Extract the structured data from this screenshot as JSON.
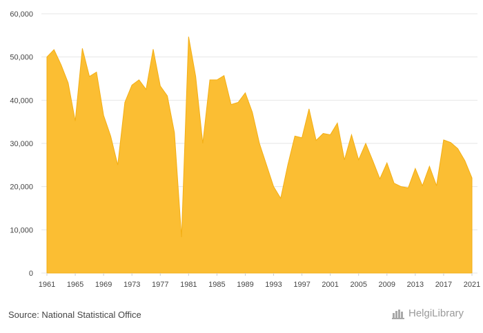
{
  "chart_data": {
    "type": "area",
    "x": [
      1961,
      1962,
      1963,
      1964,
      1965,
      1966,
      1967,
      1968,
      1969,
      1970,
      1971,
      1972,
      1973,
      1974,
      1975,
      1976,
      1977,
      1978,
      1979,
      1980,
      1981,
      1982,
      1983,
      1984,
      1985,
      1986,
      1987,
      1988,
      1989,
      1990,
      1991,
      1992,
      1993,
      1994,
      1995,
      1996,
      1997,
      1998,
      1999,
      2000,
      2001,
      2002,
      2003,
      2004,
      2005,
      2006,
      2007,
      2008,
      2009,
      2010,
      2011,
      2012,
      2013,
      2014,
      2015,
      2016,
      2017,
      2018,
      2019,
      2020,
      2021
    ],
    "values": [
      50000,
      51700,
      48200,
      44000,
      35200,
      52000,
      45500,
      46500,
      36500,
      31700,
      25000,
      39500,
      43500,
      44700,
      42500,
      51800,
      43300,
      41000,
      32500,
      8300,
      54700,
      45500,
      30000,
      44700,
      44700,
      45700,
      39000,
      39500,
      41700,
      37200,
      30000,
      25000,
      20000,
      17300,
      25000,
      31700,
      31300,
      38000,
      30700,
      32300,
      32000,
      34700,
      26200,
      32000,
      26200,
      30000,
      26000,
      21800,
      25500,
      20800,
      20000,
      19700,
      24200,
      20200,
      24700,
      20200,
      30800,
      30200,
      28800,
      26000,
      22000
    ],
    "title": "",
    "xlabel": "",
    "ylabel": "",
    "ylim": [
      0,
      60000
    ],
    "y_ticks": [
      "0",
      "10,000",
      "20,000",
      "30,000",
      "40,000",
      "50,000",
      "60,000"
    ],
    "x_ticks": [
      "1961",
      "1965",
      "1969",
      "1973",
      "1977",
      "1981",
      "1985",
      "1989",
      "1993",
      "1997",
      "2001",
      "2005",
      "2009",
      "2013",
      "2017",
      "2021"
    ],
    "grid": true,
    "fill_color": "#FBBE33",
    "line_color": "#F3AE14"
  },
  "footer": {
    "source": "Source: National Statistical Office",
    "logo_text": "HelgiLibrary"
  },
  "logo_icon": "library-buildings-icon"
}
